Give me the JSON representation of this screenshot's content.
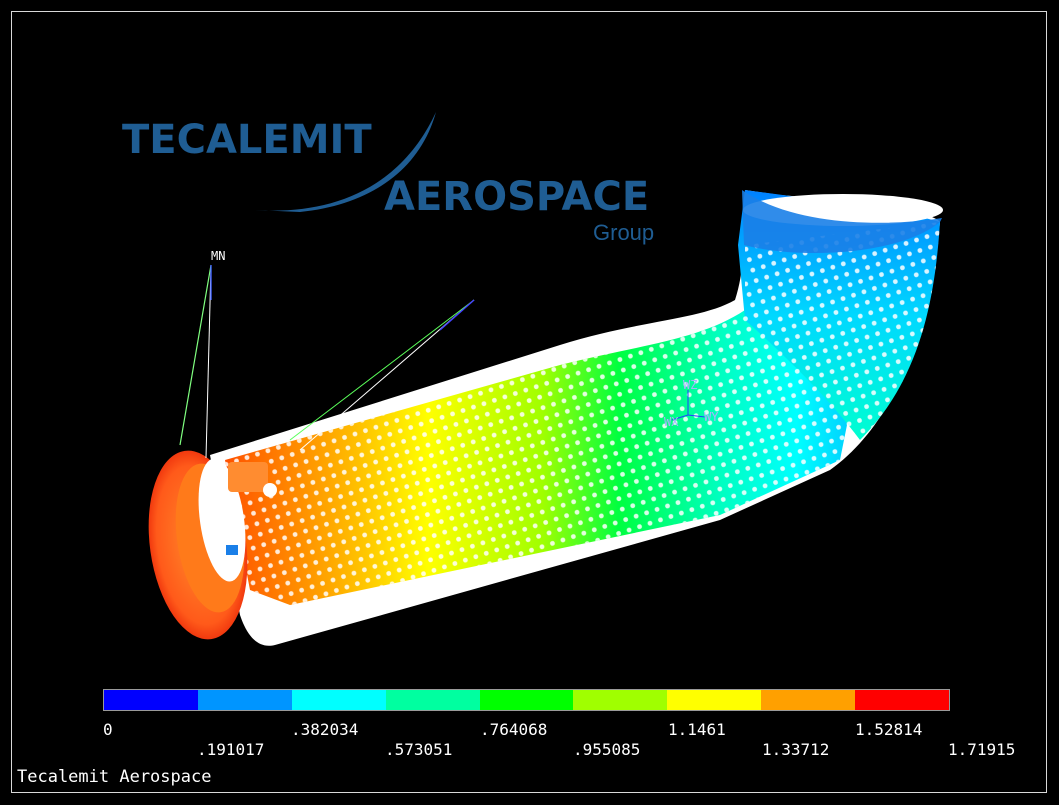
{
  "logo": {
    "line1": "TECALEMIT",
    "line2": "AEROSPACE",
    "line3": "Group",
    "color": "#1f5d93"
  },
  "triad": {
    "mn_label": "MN",
    "wz_label": "WZ",
    "wy_label": "WY",
    "wx_label": "WX"
  },
  "legend": {
    "colors": [
      "#0000ff",
      "#0095ff",
      "#00ffff",
      "#00ffa0",
      "#00ff00",
      "#a0ff00",
      "#ffff00",
      "#ffa000",
      "#ff0000"
    ],
    "top_labels": [
      "0",
      ".382034",
      ".764068",
      "1.1461",
      "1.52814"
    ],
    "bottom_labels": [
      ".191017",
      ".573051",
      ".955085",
      "1.33712",
      "1.71915"
    ]
  },
  "footer": {
    "title": "Tecalemit Aerospace"
  }
}
